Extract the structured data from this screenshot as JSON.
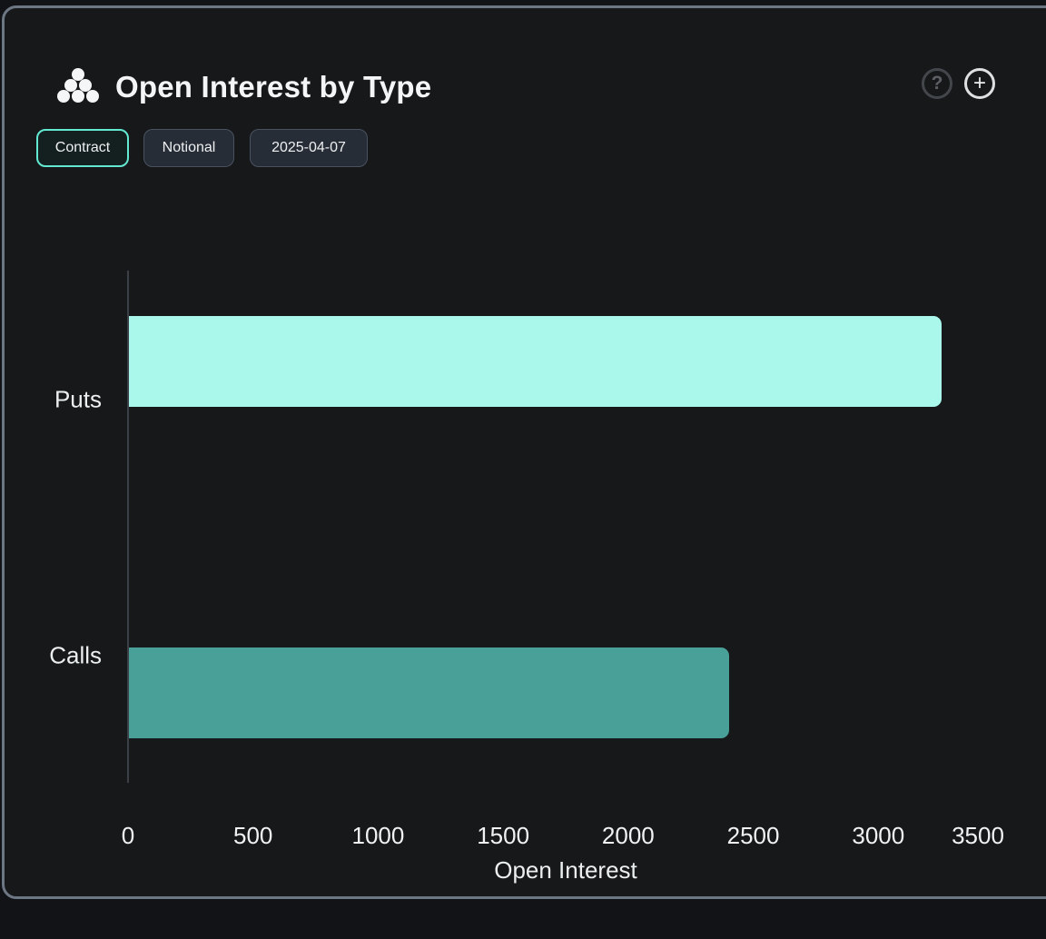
{
  "header": {
    "title": "Open Interest by Type",
    "icon": "dots-pyramid",
    "help_glyph": "?",
    "add_glyph": "+"
  },
  "controls": [
    {
      "label": "Contract",
      "active": true
    },
    {
      "label": "Notional",
      "active": false
    },
    {
      "label": "2025-04-07",
      "active": false
    }
  ],
  "chart_data": {
    "type": "bar",
    "orientation": "horizontal",
    "title": "Open Interest by Type",
    "categories": [
      "Puts",
      "Calls"
    ],
    "values": [
      3250,
      2400
    ],
    "bar_colors": [
      "#aaf8ec",
      "#48a098"
    ],
    "xlabel": "Open Interest",
    "ylabel": "",
    "xticks": [
      0,
      500,
      1000,
      1500,
      2000,
      2500,
      3000,
      3500
    ],
    "xlim": [
      0,
      3500
    ],
    "grid": false,
    "legend": false
  },
  "colors": {
    "accent_mint": "#63e8d2",
    "card_border": "#6d7683",
    "card_bg": "#16181a",
    "axis_line": "#3b4046"
  }
}
